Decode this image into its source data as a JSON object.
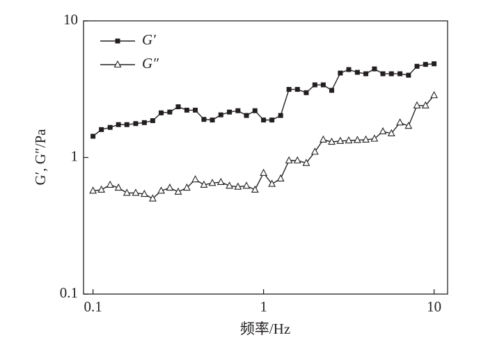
{
  "chart_data": {
    "type": "line",
    "x_label": "频率/Hz",
    "y_label": "G′, G″/Pa",
    "xlog": true,
    "ylog": true,
    "xlim": [
      0.088,
      12
    ],
    "ylim": [
      0.1,
      10
    ],
    "xticks": [
      0.1,
      1,
      10
    ],
    "yticks": [
      0.1,
      1,
      10
    ],
    "legend": "upper left",
    "x": [
      0.1,
      0.112,
      0.126,
      0.141,
      0.158,
      0.178,
      0.2,
      0.224,
      0.251,
      0.282,
      0.316,
      0.355,
      0.398,
      0.447,
      0.501,
      0.562,
      0.631,
      0.708,
      0.794,
      0.891,
      1,
      1.12,
      1.26,
      1.41,
      1.58,
      1.78,
      2,
      2.24,
      2.51,
      2.82,
      3.16,
      3.55,
      3.98,
      4.47,
      5.01,
      5.62,
      6.31,
      7.08,
      7.94,
      8.91,
      10
    ],
    "series": [
      {
        "name": "G′",
        "color": "#231f20",
        "marker": "square",
        "values": [
          1.43,
          1.6,
          1.66,
          1.74,
          1.74,
          1.77,
          1.8,
          1.86,
          2.12,
          2.15,
          2.35,
          2.22,
          2.22,
          1.9,
          1.88,
          2.05,
          2.15,
          2.2,
          2.03,
          2.2,
          1.88,
          1.88,
          2.03,
          3.15,
          3.15,
          2.98,
          3.4,
          3.4,
          3.1,
          4.15,
          4.4,
          4.2,
          4.1,
          4.45,
          4.1,
          4.1,
          4.1,
          4.0,
          4.65,
          4.8,
          4.85
        ]
      },
      {
        "name": "G″",
        "color": "#231f20",
        "marker": "triangle",
        "values": [
          0.57,
          0.58,
          0.63,
          0.6,
          0.55,
          0.55,
          0.54,
          0.5,
          0.57,
          0.6,
          0.56,
          0.6,
          0.69,
          0.63,
          0.65,
          0.66,
          0.62,
          0.61,
          0.62,
          0.58,
          0.77,
          0.64,
          0.7,
          0.95,
          0.95,
          0.91,
          1.1,
          1.35,
          1.3,
          1.32,
          1.33,
          1.34,
          1.35,
          1.37,
          1.55,
          1.5,
          1.8,
          1.7,
          2.4,
          2.4,
          2.85
        ]
      }
    ]
  }
}
